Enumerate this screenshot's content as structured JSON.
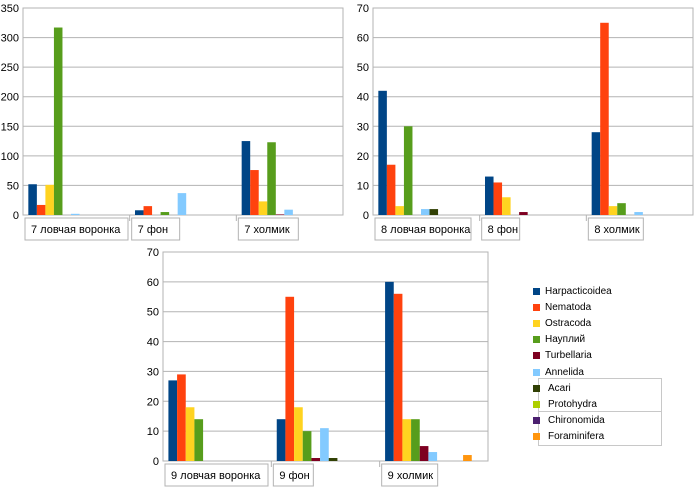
{
  "legend": {
    "items": [
      {
        "name": "Harpacticoidea",
        "color": "#004586"
      },
      {
        "name": "Nematoda",
        "color": "#ff420e"
      },
      {
        "name": "Ostracoda",
        "color": "#ffd320"
      },
      {
        "name": "Науплий",
        "color": "#579d1c"
      },
      {
        "name": "Turbellaria",
        "color": "#7e0021"
      },
      {
        "name": "Annelida",
        "color": "#83caff"
      },
      {
        "name": "Acari",
        "color": "#314004"
      },
      {
        "name": "Protohydra",
        "color": "#aecf00"
      },
      {
        "name": "Chironomida",
        "color": "#4b1f6f"
      },
      {
        "name": "Foraminifera",
        "color": "#ff950e"
      }
    ]
  },
  "chart_data": [
    {
      "type": "bar",
      "categories": [
        "7 ловчая воронка",
        "7 фон",
        "7 холмик"
      ],
      "ylim": [
        0,
        350
      ],
      "yticks": [
        0,
        50,
        100,
        150,
        200,
        250,
        300,
        350
      ],
      "series": [
        {
          "name": "Harpacticoidea",
          "values": [
            52,
            8,
            125
          ]
        },
        {
          "name": "Nematoda",
          "values": [
            17,
            15,
            76
          ]
        },
        {
          "name": "Ostracoda",
          "values": [
            51,
            0,
            23
          ]
        },
        {
          "name": "Науплий",
          "values": [
            317,
            5,
            123
          ]
        },
        {
          "name": "Turbellaria",
          "values": [
            0,
            0,
            1
          ]
        },
        {
          "name": "Annelida",
          "values": [
            2,
            37,
            9
          ]
        },
        {
          "name": "Acari",
          "values": [
            0,
            0,
            0
          ]
        },
        {
          "name": "Protohydra",
          "values": [
            0,
            0,
            0
          ]
        },
        {
          "name": "Chironomida",
          "values": [
            0,
            0,
            0
          ]
        },
        {
          "name": "Foraminifera",
          "values": [
            0,
            0,
            0
          ]
        }
      ]
    },
    {
      "type": "bar",
      "categories": [
        "8 ловчая воронка",
        "8 фон",
        "8 холмик"
      ],
      "ylim": [
        0,
        70
      ],
      "yticks": [
        0,
        10,
        20,
        30,
        40,
        50,
        60,
        70
      ],
      "series": [
        {
          "name": "Harpacticoidea",
          "values": [
            42,
            13,
            28
          ]
        },
        {
          "name": "Nematoda",
          "values": [
            17,
            11,
            65
          ]
        },
        {
          "name": "Ostracoda",
          "values": [
            3,
            6,
            3
          ]
        },
        {
          "name": "Науплий",
          "values": [
            30,
            0,
            4
          ]
        },
        {
          "name": "Turbellaria",
          "values": [
            0,
            1,
            0
          ]
        },
        {
          "name": "Annelida",
          "values": [
            2,
            0,
            1
          ]
        },
        {
          "name": "Acari",
          "values": [
            2,
            0,
            0
          ]
        },
        {
          "name": "Protohydra",
          "values": [
            0,
            0,
            0
          ]
        },
        {
          "name": "Chironomida",
          "values": [
            0,
            0,
            0
          ]
        },
        {
          "name": "Foraminifera",
          "values": [
            0,
            0,
            0
          ]
        }
      ]
    },
    {
      "type": "bar",
      "categories": [
        "9 ловчая воронка",
        "9 фон",
        "9 холмик"
      ],
      "ylim": [
        0,
        70
      ],
      "yticks": [
        0,
        10,
        20,
        30,
        40,
        50,
        60,
        70
      ],
      "series": [
        {
          "name": "Harpacticoidea",
          "values": [
            27,
            14,
            60
          ]
        },
        {
          "name": "Nematoda",
          "values": [
            29,
            55,
            56
          ]
        },
        {
          "name": "Ostracoda",
          "values": [
            18,
            18,
            14
          ]
        },
        {
          "name": "Науплий",
          "values": [
            14,
            10,
            14
          ]
        },
        {
          "name": "Turbellaria",
          "values": [
            0,
            1,
            5
          ]
        },
        {
          "name": "Annelida",
          "values": [
            0,
            11,
            3
          ]
        },
        {
          "name": "Acari",
          "values": [
            0,
            1,
            0
          ]
        },
        {
          "name": "Protohydra",
          "values": [
            0,
            0,
            0
          ]
        },
        {
          "name": "Chironomida",
          "values": [
            0,
            0,
            0
          ]
        },
        {
          "name": "Foraminifera",
          "values": [
            0,
            0,
            2
          ]
        }
      ]
    }
  ]
}
